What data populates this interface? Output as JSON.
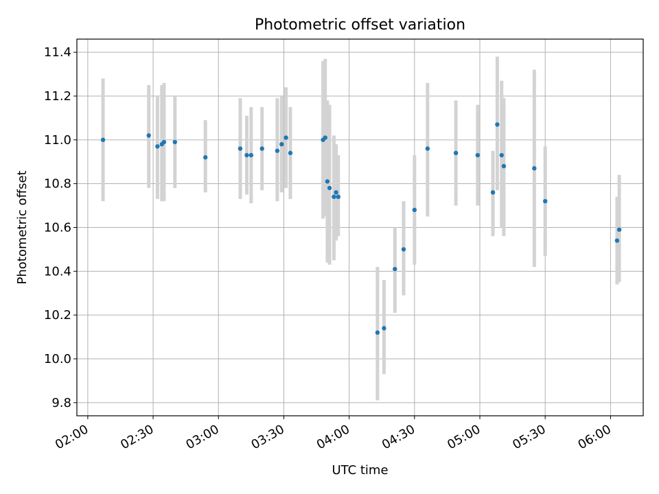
{
  "chart_data": {
    "type": "scatter",
    "title": "Photometric offset variation",
    "xlabel": "UTC time",
    "ylabel": "Photometric offset",
    "xlim": [
      "01:55",
      "06:15"
    ],
    "ylim": [
      9.74,
      11.46
    ],
    "x_ticks": [
      "02:00",
      "02:30",
      "03:00",
      "03:30",
      "04:00",
      "04:30",
      "05:00",
      "05:30",
      "06:00"
    ],
    "y_ticks": [
      "9.8",
      "10.0",
      "10.2",
      "10.4",
      "10.6",
      "10.8",
      "11.0",
      "11.2",
      "11.4"
    ],
    "grid": true,
    "marker_color": "#1f77b4",
    "errorbar_color": "#d3d3d3",
    "points": [
      {
        "x": "02:07",
        "y": 11.0,
        "ylow": 10.72,
        "yhigh": 11.28
      },
      {
        "x": "02:28",
        "y": 11.02,
        "ylow": 10.78,
        "yhigh": 11.25
      },
      {
        "x": "02:32",
        "y": 10.97,
        "ylow": 10.73,
        "yhigh": 11.2
      },
      {
        "x": "02:34",
        "y": 10.98,
        "ylow": 10.72,
        "yhigh": 11.25
      },
      {
        "x": "02:35",
        "y": 10.99,
        "ylow": 10.72,
        "yhigh": 11.26
      },
      {
        "x": "02:40",
        "y": 10.99,
        "ylow": 10.78,
        "yhigh": 11.2
      },
      {
        "x": "02:54",
        "y": 10.92,
        "ylow": 10.76,
        "yhigh": 11.09
      },
      {
        "x": "03:10",
        "y": 10.96,
        "ylow": 10.73,
        "yhigh": 11.19
      },
      {
        "x": "03:13",
        "y": 10.93,
        "ylow": 10.75,
        "yhigh": 11.11
      },
      {
        "x": "03:15",
        "y": 10.93,
        "ylow": 10.71,
        "yhigh": 11.15
      },
      {
        "x": "03:20",
        "y": 10.96,
        "ylow": 10.77,
        "yhigh": 11.15
      },
      {
        "x": "03:27",
        "y": 10.95,
        "ylow": 10.72,
        "yhigh": 11.19
      },
      {
        "x": "03:29",
        "y": 10.98,
        "ylow": 10.76,
        "yhigh": 11.2
      },
      {
        "x": "03:31",
        "y": 11.01,
        "ylow": 10.78,
        "yhigh": 11.24
      },
      {
        "x": "03:33",
        "y": 10.94,
        "ylow": 10.73,
        "yhigh": 11.15
      },
      {
        "x": "03:48",
        "y": 11.0,
        "ylow": 10.64,
        "yhigh": 11.36
      },
      {
        "x": "03:49",
        "y": 11.01,
        "ylow": 10.65,
        "yhigh": 11.37
      },
      {
        "x": "03:50",
        "y": 10.81,
        "ylow": 10.44,
        "yhigh": 11.18
      },
      {
        "x": "03:51",
        "y": 10.78,
        "ylow": 10.43,
        "yhigh": 11.16
      },
      {
        "x": "03:53",
        "y": 10.74,
        "ylow": 10.45,
        "yhigh": 11.02
      },
      {
        "x": "03:54",
        "y": 10.76,
        "ylow": 10.54,
        "yhigh": 10.98
      },
      {
        "x": "03:55",
        "y": 10.74,
        "ylow": 10.56,
        "yhigh": 10.93
      },
      {
        "x": "04:13",
        "y": 10.12,
        "ylow": 9.81,
        "yhigh": 10.42
      },
      {
        "x": "04:16",
        "y": 10.14,
        "ylow": 9.93,
        "yhigh": 10.36
      },
      {
        "x": "04:21",
        "y": 10.41,
        "ylow": 10.21,
        "yhigh": 10.6
      },
      {
        "x": "04:25",
        "y": 10.5,
        "ylow": 10.29,
        "yhigh": 10.72
      },
      {
        "x": "04:30",
        "y": 10.68,
        "ylow": 10.43,
        "yhigh": 10.93
      },
      {
        "x": "04:36",
        "y": 10.96,
        "ylow": 10.65,
        "yhigh": 11.26
      },
      {
        "x": "04:49",
        "y": 10.94,
        "ylow": 10.7,
        "yhigh": 11.18
      },
      {
        "x": "04:59",
        "y": 10.93,
        "ylow": 10.7,
        "yhigh": 11.16
      },
      {
        "x": "05:06",
        "y": 10.76,
        "ylow": 10.56,
        "yhigh": 10.95
      },
      {
        "x": "05:08",
        "y": 11.07,
        "ylow": 10.77,
        "yhigh": 11.38
      },
      {
        "x": "05:10",
        "y": 10.93,
        "ylow": 10.6,
        "yhigh": 11.27
      },
      {
        "x": "05:11",
        "y": 10.88,
        "ylow": 10.56,
        "yhigh": 11.19
      },
      {
        "x": "05:25",
        "y": 10.87,
        "ylow": 10.42,
        "yhigh": 11.32
      },
      {
        "x": "05:30",
        "y": 10.72,
        "ylow": 10.47,
        "yhigh": 10.97
      },
      {
        "x": "06:03",
        "y": 10.54,
        "ylow": 10.34,
        "yhigh": 10.74
      },
      {
        "x": "06:04",
        "y": 10.59,
        "ylow": 10.35,
        "yhigh": 10.84
      }
    ]
  }
}
